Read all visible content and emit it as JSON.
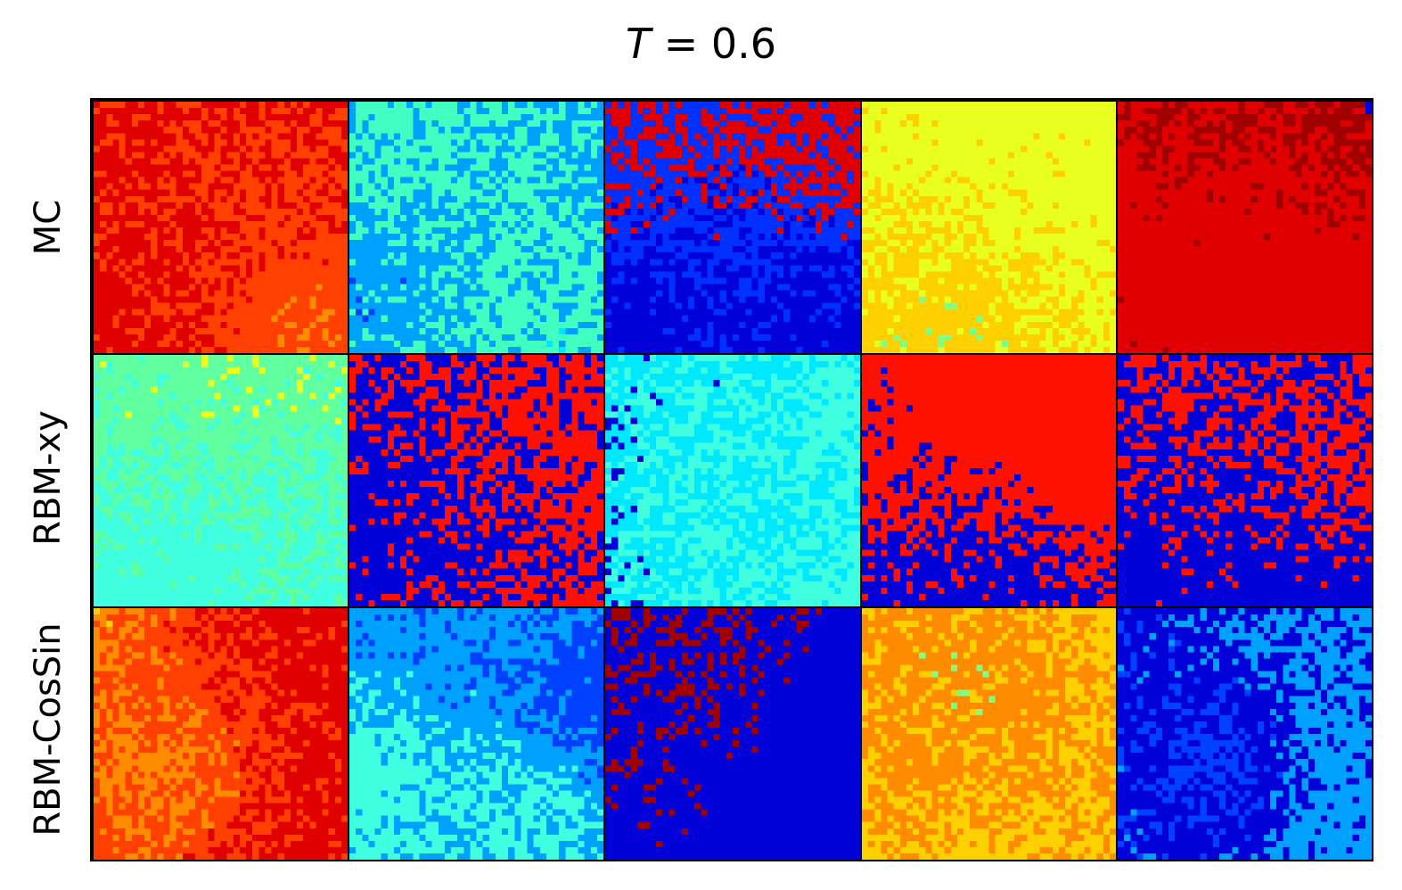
{
  "figure": {
    "title_var": "T",
    "title_eq": " = 0.6",
    "rows": [
      {
        "label": "MC",
        "panels": [
          {
            "dominant": "red-orange",
            "seed": 11,
            "mix": [
              [
                "#e00000",
                0.35
              ],
              [
                "#ff4000",
                0.25
              ],
              [
                "#ff8c00",
                0.15
              ],
              [
                "#ffd000",
                0.1
              ],
              [
                "#a00000",
                0.08
              ],
              [
                "#0000d8",
                0.07
              ]
            ]
          },
          {
            "dominant": "blue-cyan",
            "seed": 23,
            "mix": [
              [
                "#0040ff",
                0.3
              ],
              [
                "#00a0ff",
                0.2
              ],
              [
                "#40ffc0",
                0.2
              ],
              [
                "#00e8ff",
                0.15
              ],
              [
                "#0000d8",
                0.15
              ]
            ]
          },
          {
            "dominant": "blue-red",
            "seed": 37,
            "mix": [
              [
                "#0000d8",
                0.45
              ],
              [
                "#0030ff",
                0.15
              ],
              [
                "#e00000",
                0.2
              ],
              [
                "#a00000",
                0.1
              ],
              [
                "#00a0ff",
                0.1
              ]
            ]
          },
          {
            "dominant": "yellow-cyan",
            "seed": 41,
            "mix": [
              [
                "#e8ff20",
                0.35
              ],
              [
                "#ffd000",
                0.2
              ],
              [
                "#80ff80",
                0.2
              ],
              [
                "#40ffe0",
                0.15
              ],
              [
                "#ff8c00",
                0.1
              ]
            ]
          },
          {
            "dominant": "red-blue",
            "seed": 53,
            "mix": [
              [
                "#e00000",
                0.35
              ],
              [
                "#a00000",
                0.2
              ],
              [
                "#0000d8",
                0.3
              ],
              [
                "#ff4000",
                0.1
              ],
              [
                "#0040ff",
                0.05
              ]
            ]
          }
        ]
      },
      {
        "label": "RBM-xy",
        "panels": [
          {
            "dominant": "yellow-cyan",
            "seed": 61,
            "mix": [
              [
                "#e8ff20",
                0.45
              ],
              [
                "#60ffa0",
                0.2
              ],
              [
                "#40ffe0",
                0.25
              ],
              [
                "#e00000",
                0.05
              ],
              [
                "#ffd000",
                0.05
              ]
            ]
          },
          {
            "dominant": "blue-red",
            "seed": 71,
            "mix": [
              [
                "#0000d8",
                0.45
              ],
              [
                "#ff1000",
                0.35
              ],
              [
                "#a00000",
                0.08
              ],
              [
                "#e8ff20",
                0.12
              ]
            ]
          },
          {
            "dominant": "cyan-blue",
            "seed": 83,
            "mix": [
              [
                "#40ffe0",
                0.45
              ],
              [
                "#00e8ff",
                0.15
              ],
              [
                "#0000d8",
                0.3
              ],
              [
                "#e8ff20",
                0.1
              ]
            ]
          },
          {
            "dominant": "red-yellow",
            "seed": 97,
            "mix": [
              [
                "#ff1000",
                0.5
              ],
              [
                "#0000d8",
                0.25
              ],
              [
                "#e8ff20",
                0.2
              ],
              [
                "#a00000",
                0.05
              ]
            ]
          },
          {
            "dominant": "blue-red",
            "seed": 101,
            "mix": [
              [
                "#0000d8",
                0.45
              ],
              [
                "#ff1000",
                0.35
              ],
              [
                "#e8ff20",
                0.1
              ],
              [
                "#40ffe0",
                0.05
              ],
              [
                "#a00000",
                0.05
              ]
            ]
          }
        ]
      },
      {
        "label": "RBM-CosSin",
        "panels": [
          {
            "dominant": "red-orange",
            "seed": 113,
            "mix": [
              [
                "#e00000",
                0.35
              ],
              [
                "#ff4000",
                0.2
              ],
              [
                "#ff8c00",
                0.15
              ],
              [
                "#ffd000",
                0.08
              ],
              [
                "#0000d8",
                0.12
              ],
              [
                "#a00000",
                0.1
              ]
            ]
          },
          {
            "dominant": "blue-cyan",
            "seed": 127,
            "mix": [
              [
                "#0040ff",
                0.3
              ],
              [
                "#00a0ff",
                0.2
              ],
              [
                "#40ffe0",
                0.25
              ],
              [
                "#80ff80",
                0.1
              ],
              [
                "#0000d8",
                0.15
              ]
            ]
          },
          {
            "dominant": "red-blue",
            "seed": 131,
            "mix": [
              [
                "#e00000",
                0.3
              ],
              [
                "#a00000",
                0.15
              ],
              [
                "#0000d8",
                0.35
              ],
              [
                "#ff4000",
                0.1
              ],
              [
                "#0040ff",
                0.1
              ]
            ]
          },
          {
            "dominant": "yellow-orange",
            "seed": 149,
            "mix": [
              [
                "#e8ff20",
                0.3
              ],
              [
                "#ffd000",
                0.25
              ],
              [
                "#ff8c00",
                0.2
              ],
              [
                "#80ff80",
                0.1
              ],
              [
                "#e00000",
                0.1
              ],
              [
                "#a00000",
                0.05
              ]
            ]
          },
          {
            "dominant": "blue",
            "seed": 157,
            "mix": [
              [
                "#0040ff",
                0.4
              ],
              [
                "#0000d8",
                0.2
              ],
              [
                "#00a0ff",
                0.25
              ],
              [
                "#00e8ff",
                0.1
              ],
              [
                "#a00000",
                0.05
              ]
            ]
          }
        ]
      }
    ]
  }
}
